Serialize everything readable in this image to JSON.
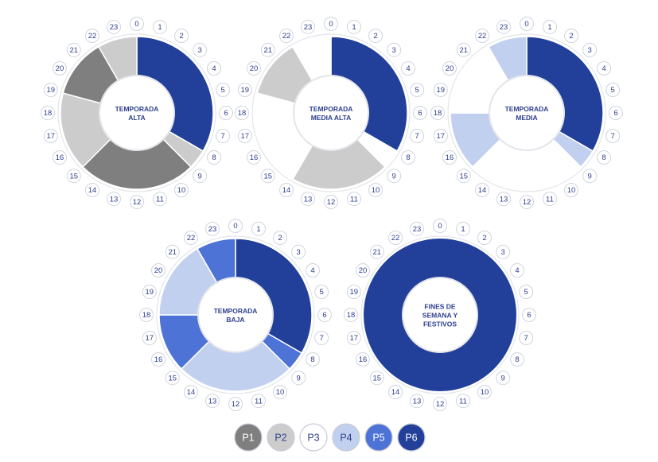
{
  "periods": [
    {
      "id": "P1",
      "label": "P1",
      "color": "#7f7f7f",
      "text_color": "#ffffff"
    },
    {
      "id": "P2",
      "label": "P2",
      "color": "#cccccc",
      "text_color": "#2d3f8f"
    },
    {
      "id": "P3",
      "label": "P3",
      "color": "#ffffff",
      "text_color": "#2d3f8f"
    },
    {
      "id": "P4",
      "label": "P4",
      "color": "#c2d0f0",
      "text_color": "#2d3f8f"
    },
    {
      "id": "P5",
      "label": "P5",
      "color": "#4d73d6",
      "text_color": "#ffffff"
    },
    {
      "id": "P6",
      "label": "P6",
      "color": "#22409a",
      "text_color": "#ffffff"
    }
  ],
  "hour_labels": [
    "0",
    "1",
    "2",
    "3",
    "4",
    "5",
    "6",
    "7",
    "8",
    "9",
    "10",
    "11",
    "12",
    "13",
    "14",
    "15",
    "16",
    "17",
    "18",
    "19",
    "20",
    "21",
    "22",
    "23"
  ],
  "rings": [
    {
      "id": "temporada-alta",
      "label_lines": [
        "TEMPORADA",
        "ALTA"
      ],
      "hours": [
        "P6",
        "P6",
        "P6",
        "P6",
        "P6",
        "P6",
        "P6",
        "P6",
        "P2",
        "P1",
        "P1",
        "P1",
        "P1",
        "P1",
        "P1",
        "P2",
        "P2",
        "P2",
        "P2",
        "P1",
        "P1",
        "P1",
        "P2",
        "P2"
      ]
    },
    {
      "id": "temporada-media-alta",
      "label_lines": [
        "TEMPORADA",
        "MEDIA ALTA"
      ],
      "hours": [
        "P6",
        "P6",
        "P6",
        "P6",
        "P6",
        "P6",
        "P6",
        "P6",
        "P3",
        "P2",
        "P2",
        "P2",
        "P2",
        "P2",
        "P3",
        "P3",
        "P3",
        "P3",
        "P3",
        "P2",
        "P2",
        "P2",
        "P3",
        "P3"
      ]
    },
    {
      "id": "temporada-media",
      "label_lines": [
        "TEMPORADA",
        "MEDIA"
      ],
      "hours": [
        "P6",
        "P6",
        "P6",
        "P6",
        "P6",
        "P6",
        "P6",
        "P6",
        "P4",
        "P3",
        "P3",
        "P3",
        "P3",
        "P3",
        "P3",
        "P4",
        "P4",
        "P4",
        "P3",
        "P3",
        "P3",
        "P3",
        "P4",
        "P4"
      ]
    },
    {
      "id": "temporada-baja",
      "label_lines": [
        "TEMPORADA",
        "BAJA"
      ],
      "hours": [
        "P6",
        "P6",
        "P6",
        "P6",
        "P6",
        "P6",
        "P6",
        "P6",
        "P5",
        "P4",
        "P4",
        "P4",
        "P4",
        "P4",
        "P4",
        "P5",
        "P5",
        "P5",
        "P4",
        "P4",
        "P4",
        "P4",
        "P5",
        "P5"
      ]
    },
    {
      "id": "fines-de-semana-y-festivos",
      "label_lines": [
        "FINES DE",
        "SEMANA Y",
        "FESTIVOS"
      ],
      "hours": [
        "P6",
        "P6",
        "P6",
        "P6",
        "P6",
        "P6",
        "P6",
        "P6",
        "P6",
        "P6",
        "P6",
        "P6",
        "P6",
        "P6",
        "P6",
        "P6",
        "P6",
        "P6",
        "P6",
        "P6",
        "P6",
        "P6",
        "P6",
        "P6"
      ]
    }
  ],
  "style": {
    "label_color": "#2d3f8f",
    "hour_label_color": "#2d3f8f",
    "bubble_border": "#d0d4e0",
    "ring_border": "#e3e5ea"
  }
}
